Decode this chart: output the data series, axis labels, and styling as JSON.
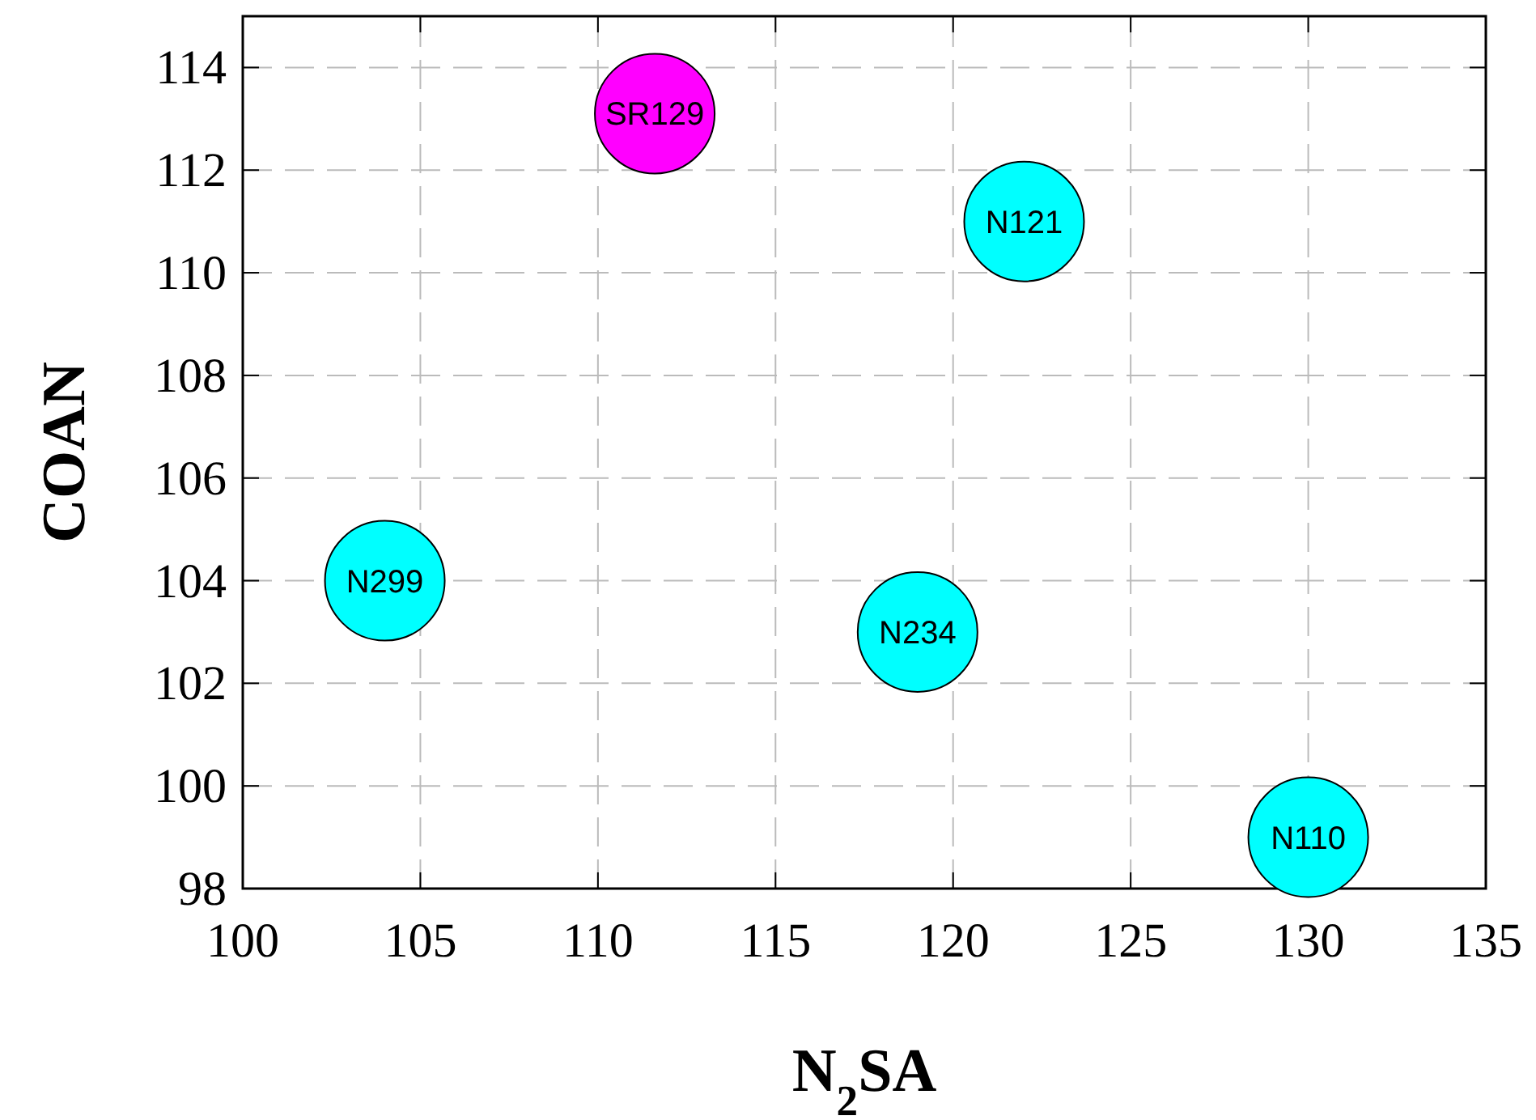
{
  "chart_data": {
    "type": "scatter",
    "xlabel": "N$_{2}$SA",
    "ylabel": "COAN",
    "x": [
      111.6,
      122,
      104,
      119,
      130
    ],
    "values": [
      113.1,
      111,
      104,
      103,
      99
    ],
    "colors": [
      "#ff00ff",
      "#00ffff",
      "#00ffff",
      "#00ffff",
      "#00ffff"
    ],
    "marker": "circle",
    "annotations": [
      {
        "text": "SR129",
        "x": 111.6,
        "y": 113.1
      },
      {
        "text": "N121",
        "x": 122,
        "y": 111
      },
      {
        "text": "N299",
        "x": 104,
        "y": 104
      },
      {
        "text": "N234",
        "x": 119,
        "y": 103
      },
      {
        "text": "N110",
        "x": 130,
        "y": 99
      }
    ],
    "xlim": [
      100,
      135
    ],
    "xticks": [
      100,
      105,
      110,
      115,
      120,
      125,
      130,
      135
    ],
    "ylim": [
      98,
      115
    ],
    "yticks": [
      98,
      100,
      102,
      104,
      106,
      108,
      110,
      112,
      114
    ],
    "grid": true
  }
}
